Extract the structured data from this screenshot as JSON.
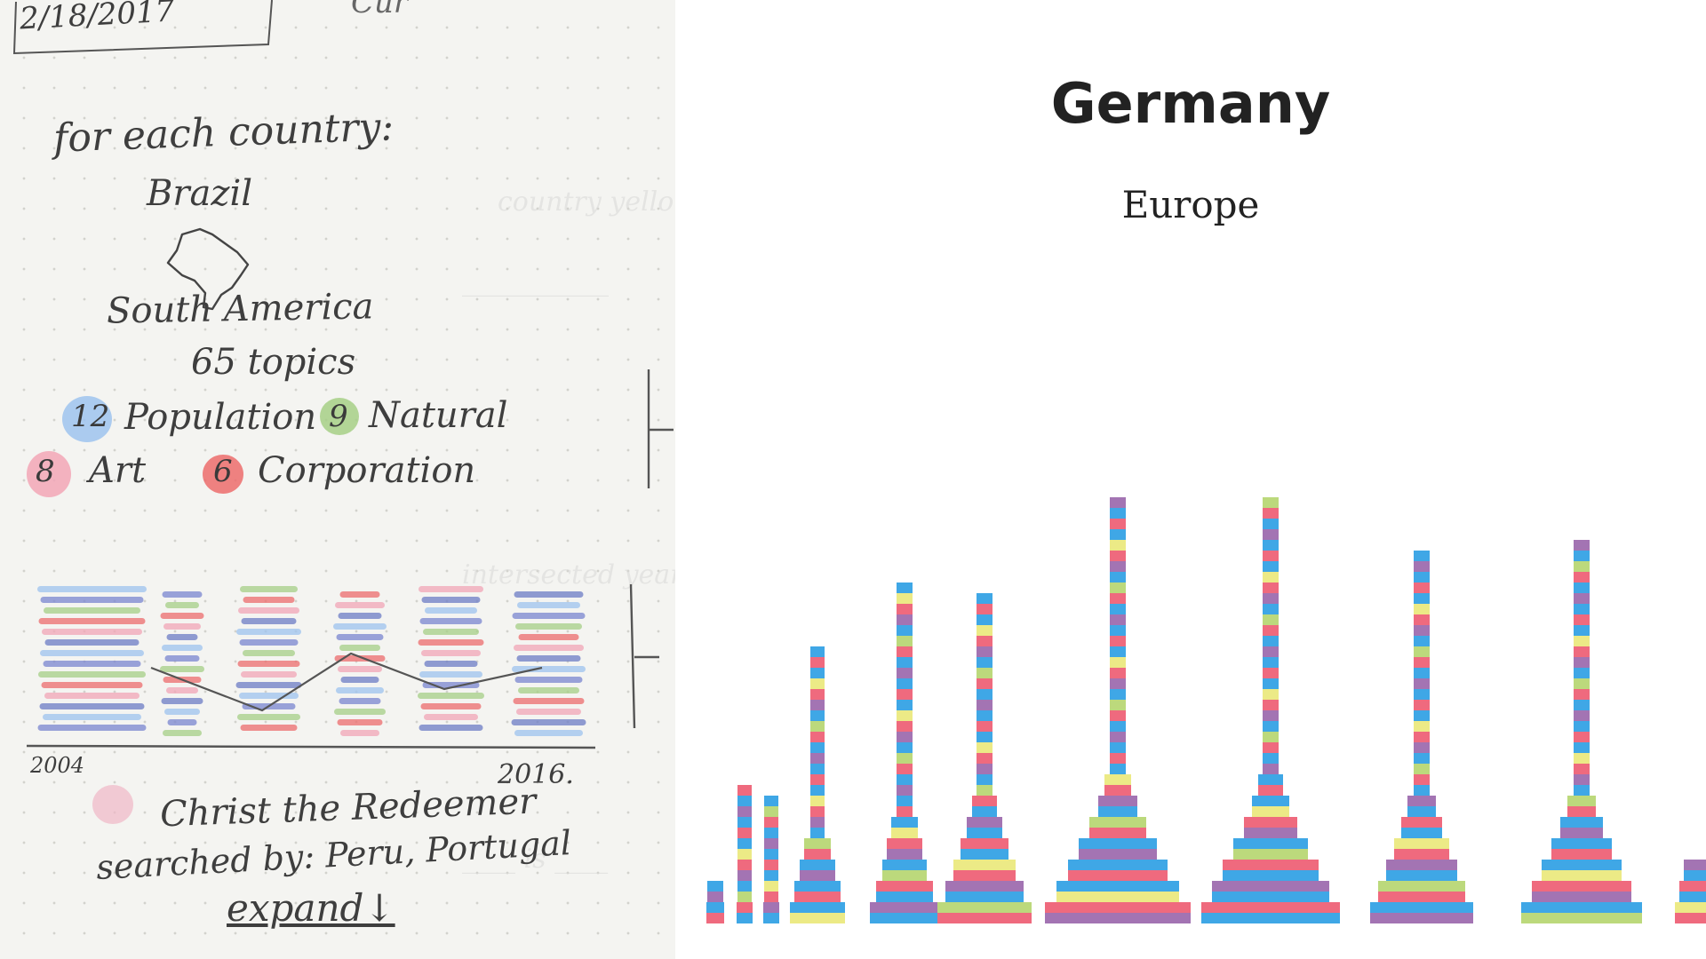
{
  "sketch": {
    "date": "2/18/2017",
    "header_fragment": "Cur",
    "intro": "for each country:",
    "country": "Brazil",
    "region": "South America",
    "topics": "65 topics",
    "categories": [
      {
        "count": "12",
        "label": "Population",
        "color": "#9ec3ee"
      },
      {
        "count": "9",
        "label": "Natural",
        "color": "#a6cf86"
      },
      {
        "count": "8",
        "label": "Art",
        "color": "#f2a6b6"
      },
      {
        "count": "6",
        "label": "Corporation",
        "color": "#ec6c6c"
      }
    ],
    "year_start": "2004",
    "year_end": "2016.",
    "topic_line": "Christ the Redeemer",
    "searched_line": "searched by: Peru, Portugal",
    "expand": "expand↓"
  },
  "viz": {
    "title": "Germany",
    "subtitle": "Europe",
    "colors": {
      "pink": "#ef6a7e",
      "blue": "#3fa7e6",
      "purple": "#a374b3",
      "green": "#bcd97c",
      "salmon": "#f3897a",
      "yellow": "#ecea86"
    }
  }
}
